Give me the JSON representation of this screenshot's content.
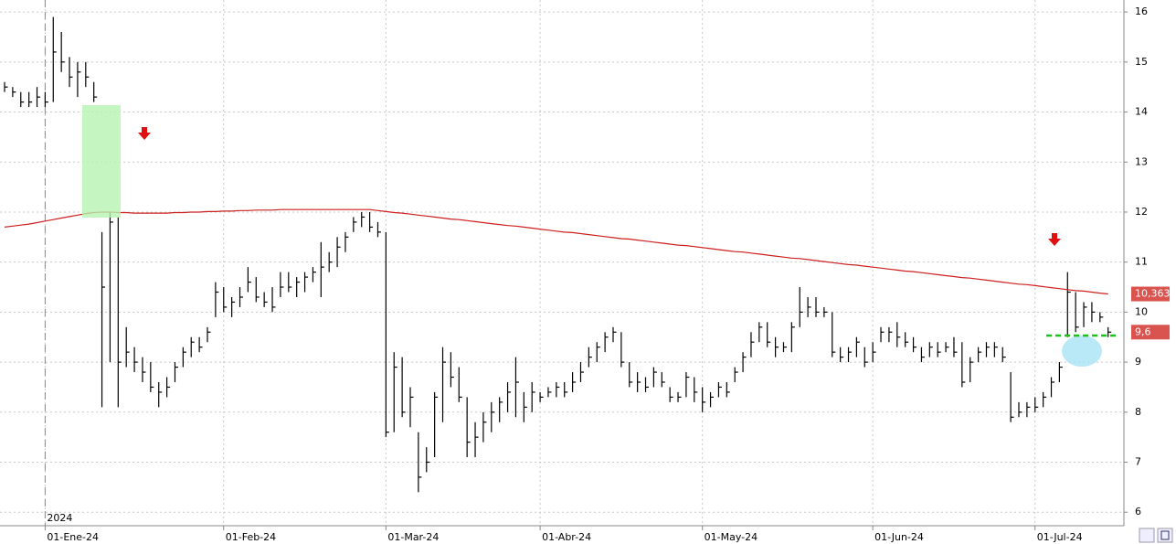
{
  "chart_data": {
    "type": "ohlc",
    "bar_color": "#000000",
    "high": [
      14.6,
      14.5,
      14.4,
      14.4,
      14.5,
      14.4,
      15.9,
      15.6,
      15.1,
      15.0,
      15.0,
      14.6,
      11.6,
      12.0,
      11.9,
      9.7,
      9.3,
      9.1,
      9.0,
      8.6,
      8.7,
      9.0,
      9.3,
      9.5,
      9.5,
      9.7,
      10.6,
      10.5,
      10.3,
      10.5,
      10.9,
      10.7,
      10.4,
      10.5,
      10.8,
      10.8,
      10.7,
      10.8,
      10.9,
      11.4,
      11.2,
      11.5,
      11.6,
      11.9,
      12.0,
      12.0,
      11.8,
      11.6,
      9.2,
      9.1,
      8.5,
      7.6,
      7.3,
      8.4,
      9.3,
      9.2,
      8.9,
      8.3,
      7.8,
      8.0,
      8.2,
      8.3,
      8.6,
      9.1,
      8.4,
      8.6,
      8.4,
      8.5,
      8.6,
      8.6,
      8.8,
      9.0,
      9.3,
      9.4,
      9.6,
      9.7,
      9.6,
      9.0,
      8.8,
      8.7,
      8.9,
      8.8,
      8.5,
      8.4,
      8.8,
      8.7,
      8.5,
      8.4,
      8.6,
      8.6,
      8.9,
      9.2,
      9.6,
      9.8,
      9.8,
      9.5,
      9.4,
      9.8,
      10.5,
      10.3,
      10.3,
      10.1,
      10.0,
      9.3,
      9.3,
      9.5,
      9.3,
      9.4,
      9.7,
      9.7,
      9.8,
      9.6,
      9.5,
      9.3,
      9.4,
      9.4,
      9.4,
      9.5,
      9.4,
      9.1,
      9.3,
      9.4,
      9.4,
      9.3,
      8.8,
      8.2,
      8.2,
      8.3,
      8.4,
      8.7,
      9.0,
      10.8,
      10.4,
      10.2,
      10.2,
      10.0,
      9.7
    ],
    "low": [
      14.4,
      14.3,
      14.1,
      14.1,
      14.1,
      14.1,
      14.2,
      14.8,
      14.5,
      14.3,
      14.5,
      14.2,
      8.1,
      9.0,
      8.1,
      8.9,
      8.8,
      8.6,
      8.4,
      8.1,
      8.3,
      8.6,
      8.9,
      9.1,
      9.2,
      9.4,
      9.9,
      10.0,
      9.9,
      10.1,
      10.4,
      10.2,
      10.1,
      10.0,
      10.3,
      10.4,
      10.3,
      10.4,
      10.6,
      10.3,
      10.8,
      10.9,
      11.2,
      11.6,
      11.7,
      11.6,
      11.5,
      7.5,
      7.6,
      7.9,
      7.7,
      6.4,
      6.8,
      7.1,
      7.8,
      8.5,
      8.2,
      7.1,
      7.1,
      7.4,
      7.6,
      7.8,
      8.0,
      7.9,
      7.8,
      8.0,
      8.2,
      8.3,
      8.3,
      8.3,
      8.4,
      8.6,
      8.9,
      9.0,
      9.2,
      9.4,
      8.9,
      8.5,
      8.4,
      8.4,
      8.5,
      8.5,
      8.2,
      8.2,
      8.3,
      8.2,
      8.0,
      8.1,
      8.3,
      8.3,
      8.6,
      8.8,
      9.1,
      9.4,
      9.3,
      9.1,
      9.2,
      9.2,
      9.7,
      9.9,
      9.9,
      9.9,
      9.1,
      9.0,
      9.0,
      9.1,
      8.9,
      9.0,
      9.4,
      9.4,
      9.3,
      9.3,
      9.2,
      9.0,
      9.1,
      9.1,
      9.2,
      9.1,
      8.5,
      8.6,
      9.0,
      9.1,
      9.1,
      9.0,
      7.8,
      7.9,
      7.9,
      8.0,
      8.1,
      8.3,
      8.6,
      9.5,
      9.6,
      9.7,
      9.8,
      9.8,
      9.5
    ],
    "close": [
      14.5,
      14.4,
      14.2,
      14.2,
      14.3,
      14.2,
      15.2,
      15.0,
      14.7,
      14.8,
      14.7,
      14.3,
      10.5,
      11.8,
      9.0,
      9.2,
      9.0,
      8.8,
      8.5,
      8.4,
      8.5,
      8.9,
      9.2,
      9.4,
      9.3,
      9.6,
      10.4,
      10.1,
      10.2,
      10.3,
      10.6,
      10.3,
      10.2,
      10.1,
      10.5,
      10.5,
      10.6,
      10.7,
      10.8,
      10.9,
      11.0,
      11.3,
      11.5,
      11.8,
      11.9,
      11.7,
      11.6,
      7.6,
      8.9,
      8.0,
      8.3,
      6.7,
      7.0,
      8.3,
      9.0,
      8.7,
      8.3,
      7.4,
      7.5,
      7.8,
      8.0,
      8.2,
      8.4,
      8.6,
      8.1,
      8.4,
      8.3,
      8.4,
      8.5,
      8.4,
      8.6,
      8.8,
      9.1,
      9.3,
      9.5,
      9.6,
      9.0,
      8.6,
      8.6,
      8.5,
      8.8,
      8.6,
      8.3,
      8.3,
      8.7,
      8.4,
      8.2,
      8.3,
      8.5,
      8.4,
      8.8,
      9.1,
      9.4,
      9.7,
      9.4,
      9.3,
      9.3,
      9.7,
      10.0,
      10.1,
      10.0,
      10.0,
      9.2,
      9.1,
      9.2,
      9.4,
      9.0,
      9.2,
      9.6,
      9.6,
      9.5,
      9.4,
      9.3,
      9.1,
      9.3,
      9.2,
      9.3,
      9.2,
      8.6,
      9.0,
      9.2,
      9.3,
      9.3,
      9.1,
      7.9,
      8.0,
      8.1,
      8.1,
      8.3,
      8.6,
      8.9,
      10.4,
      9.7,
      10.1,
      10.0,
      9.9,
      9.6
    ],
    "ma": {
      "color": "#cc1f1f",
      "values": [
        11.7,
        11.72,
        11.74,
        11.76,
        11.79,
        11.82,
        11.85,
        11.88,
        11.91,
        11.94,
        11.97,
        11.99,
        12.0,
        12.0,
        11.99,
        11.99,
        11.98,
        11.98,
        11.98,
        11.98,
        11.98,
        11.99,
        11.99,
        12.0,
        12.0,
        12.01,
        12.01,
        12.02,
        12.02,
        12.03,
        12.03,
        12.04,
        12.04,
        12.04,
        12.05,
        12.05,
        12.05,
        12.05,
        12.05,
        12.05,
        12.05,
        12.05,
        12.05,
        12.05,
        12.05,
        12.05,
        12.03,
        12.01,
        11.99,
        11.98,
        11.96,
        11.94,
        11.92,
        11.9,
        11.88,
        11.86,
        11.85,
        11.83,
        11.81,
        11.79,
        11.77,
        11.75,
        11.73,
        11.72,
        11.7,
        11.68,
        11.66,
        11.64,
        11.62,
        11.6,
        11.59,
        11.57,
        11.55,
        11.53,
        11.51,
        11.49,
        11.47,
        11.46,
        11.44,
        11.42,
        11.4,
        11.38,
        11.36,
        11.34,
        11.33,
        11.31,
        11.29,
        11.27,
        11.25,
        11.23,
        11.21,
        11.2,
        11.18,
        11.16,
        11.14,
        11.12,
        11.1,
        11.08,
        11.07,
        11.05,
        11.03,
        11.01,
        10.99,
        10.97,
        10.95,
        10.94,
        10.92,
        10.9,
        10.88,
        10.86,
        10.84,
        10.82,
        10.81,
        10.79,
        10.77,
        10.75,
        10.73,
        10.71,
        10.69,
        10.68,
        10.66,
        10.64,
        10.62,
        10.6,
        10.58,
        10.56,
        10.55,
        10.53,
        10.51,
        10.49,
        10.47,
        10.45,
        10.43,
        10.42,
        10.4,
        10.38,
        10.363
      ]
    },
    "ylim": [
      5.73,
      16.24
    ],
    "yticks": [
      6,
      7,
      8,
      9,
      10,
      11,
      12,
      13,
      14,
      15,
      16
    ],
    "grid": true,
    "xticks": [
      {
        "value": 5,
        "label": "01-Ene-24"
      },
      {
        "value": 27,
        "label": "01-Feb-24"
      },
      {
        "value": 47,
        "label": "01-Mar-24"
      },
      {
        "value": 66,
        "label": "01-Abr-24"
      },
      {
        "value": 86,
        "label": "01-May-24"
      },
      {
        "value": 107,
        "label": "01-Jun-24"
      },
      {
        "value": 127,
        "label": "01-Jul-24"
      }
    ],
    "year_label": "2024",
    "last_labels": [
      {
        "value": 10.363,
        "label": "10,363",
        "color": "#d9534f"
      },
      {
        "value": 9.6,
        "label": "9,6",
        "color": "#d9534f"
      }
    ]
  }
}
